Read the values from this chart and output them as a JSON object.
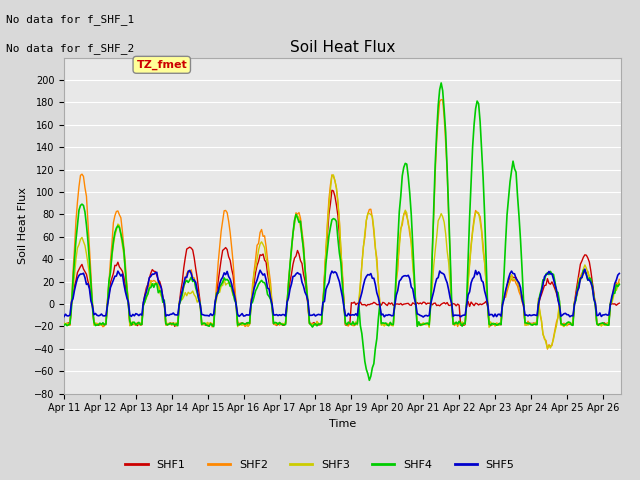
{
  "title": "Soil Heat Flux",
  "xlabel": "Time",
  "ylabel": "Soil Heat Flux",
  "ylim": [
    -80,
    220
  ],
  "yticks": [
    -80,
    -60,
    -40,
    -20,
    0,
    20,
    40,
    60,
    80,
    100,
    120,
    140,
    160,
    180,
    200
  ],
  "bg_color": "#d9d9d9",
  "plot_bg_color": "#e8e8e8",
  "legend_items": [
    "SHF1",
    "SHF2",
    "SHF3",
    "SHF4",
    "SHF5"
  ],
  "line_colors": {
    "SHF1": "#cc0000",
    "SHF2": "#ff8800",
    "SHF3": "#cccc00",
    "SHF4": "#00cc00",
    "SHF5": "#0000cc"
  },
  "annotation_line1": "No data for f_SHF_1",
  "annotation_line2": "No data for f_SHF_2",
  "box_label": "TZ_fmet",
  "box_label_color": "#cc0000",
  "box_bg_color": "#ffff99",
  "grid_color": "#ffffff",
  "grid_linewidth": 0.8
}
